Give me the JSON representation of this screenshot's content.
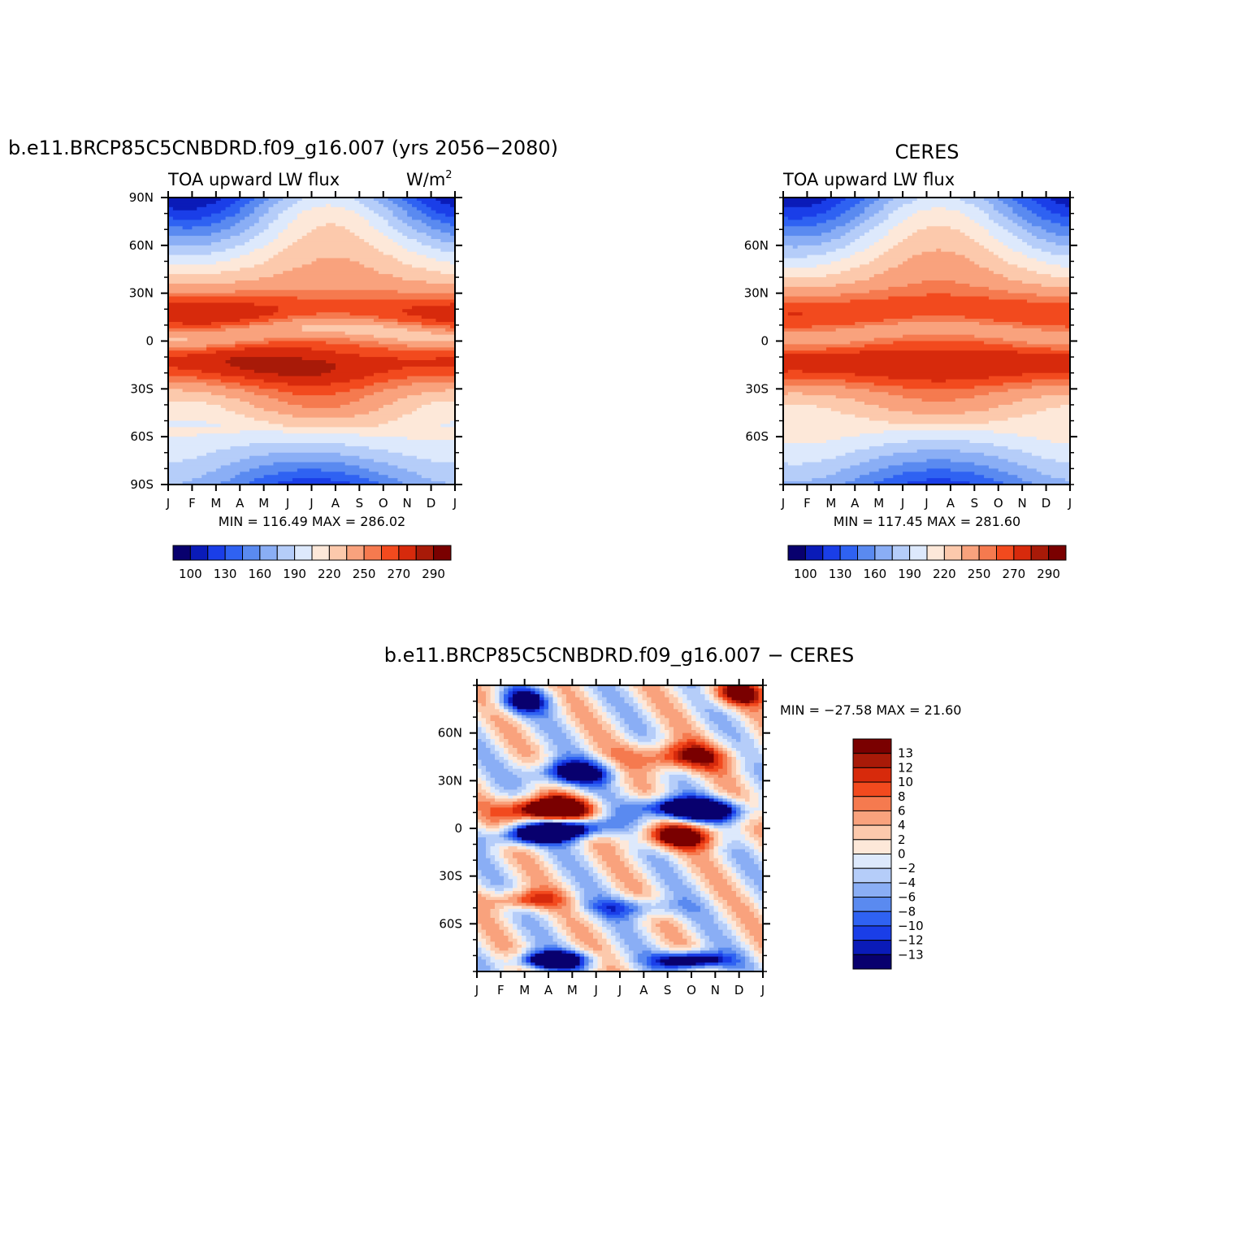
{
  "palette": {
    "levels13": [
      "#08006e",
      "#0a1bb8",
      "#1a3ee8",
      "#2f62f2",
      "#5a8af0",
      "#8aaef5",
      "#b5cdf9",
      "#dde9fc",
      "#fde8d9",
      "#fcc9ac",
      "#f9a27d",
      "#f57a4f",
      "#f24a1e",
      "#d72a0c",
      "#a81a08",
      "#7a0000"
    ],
    "diff": [
      "#08006e",
      "#0a1bb8",
      "#1a3ee8",
      "#2f62f2",
      "#5a8af0",
      "#8aaef5",
      "#b5cdf9",
      "#dde9fc",
      "#fde8d9",
      "#fcc9ac",
      "#f9a27d",
      "#f57a4f",
      "#f24a1e",
      "#d72a0c",
      "#a81a08",
      "#7a0000"
    ]
  },
  "chart_data": [
    {
      "type": "heatmap",
      "title": "b.e11.BRCP85C5CNBDRD.f09_g16.007 (yrs 2056−2080)",
      "subtitle_left": "TOA upward LW flux",
      "units_text": "W/m",
      "units_sup": "2",
      "x_tick_labels": [
        "J",
        "F",
        "M",
        "A",
        "M",
        "J",
        "J",
        "A",
        "S",
        "O",
        "N",
        "D",
        "J"
      ],
      "y_tick_labels": [
        "90N",
        "60N",
        "30N",
        "0",
        "30S",
        "60S",
        "90S"
      ],
      "y_tick_values": [
        90,
        60,
        30,
        0,
        -30,
        -60,
        -90
      ],
      "ylim": [
        -90,
        90
      ],
      "stats_text": "MIN = 116.49  MAX = 286.02",
      "min": 116.49,
      "max": 286.02,
      "colorbar_labels": [
        "100",
        "130",
        "160",
        "190",
        "220",
        "250",
        "270",
        "290"
      ],
      "field_model": "model"
    },
    {
      "type": "heatmap",
      "title": "CERES",
      "subtitle_left": "TOA upward LW flux",
      "x_tick_labels": [
        "J",
        "F",
        "M",
        "A",
        "M",
        "J",
        "J",
        "A",
        "S",
        "O",
        "N",
        "D",
        "J"
      ],
      "y_tick_labels": [
        "60N",
        "30N",
        "0",
        "30S",
        "60S"
      ],
      "y_tick_values": [
        60,
        30,
        0,
        -30,
        -60
      ],
      "ylim": [
        -90,
        90
      ],
      "stats_text": "MIN = 117.45  MAX = 281.60",
      "min": 117.45,
      "max": 281.6,
      "colorbar_labels": [
        "100",
        "130",
        "160",
        "190",
        "220",
        "250",
        "270",
        "290"
      ],
      "field_model": "obs"
    },
    {
      "type": "heatmap",
      "title": "b.e11.BRCP85C5CNBDRD.f09_g16.007 − CERES",
      "x_tick_labels": [
        "J",
        "F",
        "M",
        "A",
        "M",
        "J",
        "J",
        "A",
        "S",
        "O",
        "N",
        "D",
        "J"
      ],
      "y_tick_labels": [
        "60N",
        "30N",
        "0",
        "30S",
        "60S"
      ],
      "y_tick_values": [
        60,
        30,
        0,
        -30,
        -60
      ],
      "ylim": [
        -90,
        90
      ],
      "stats_text": "MIN = −27.58  MAX =   21.60",
      "min": -27.58,
      "max": 21.6,
      "colorbar_labels": [
        "13",
        "12",
        "10",
        "8",
        "6",
        "4",
        "2",
        "0",
        "−2",
        "−4",
        "−6",
        "−8",
        "−10",
        "−12",
        "−13"
      ],
      "field_model": "diff"
    }
  ]
}
